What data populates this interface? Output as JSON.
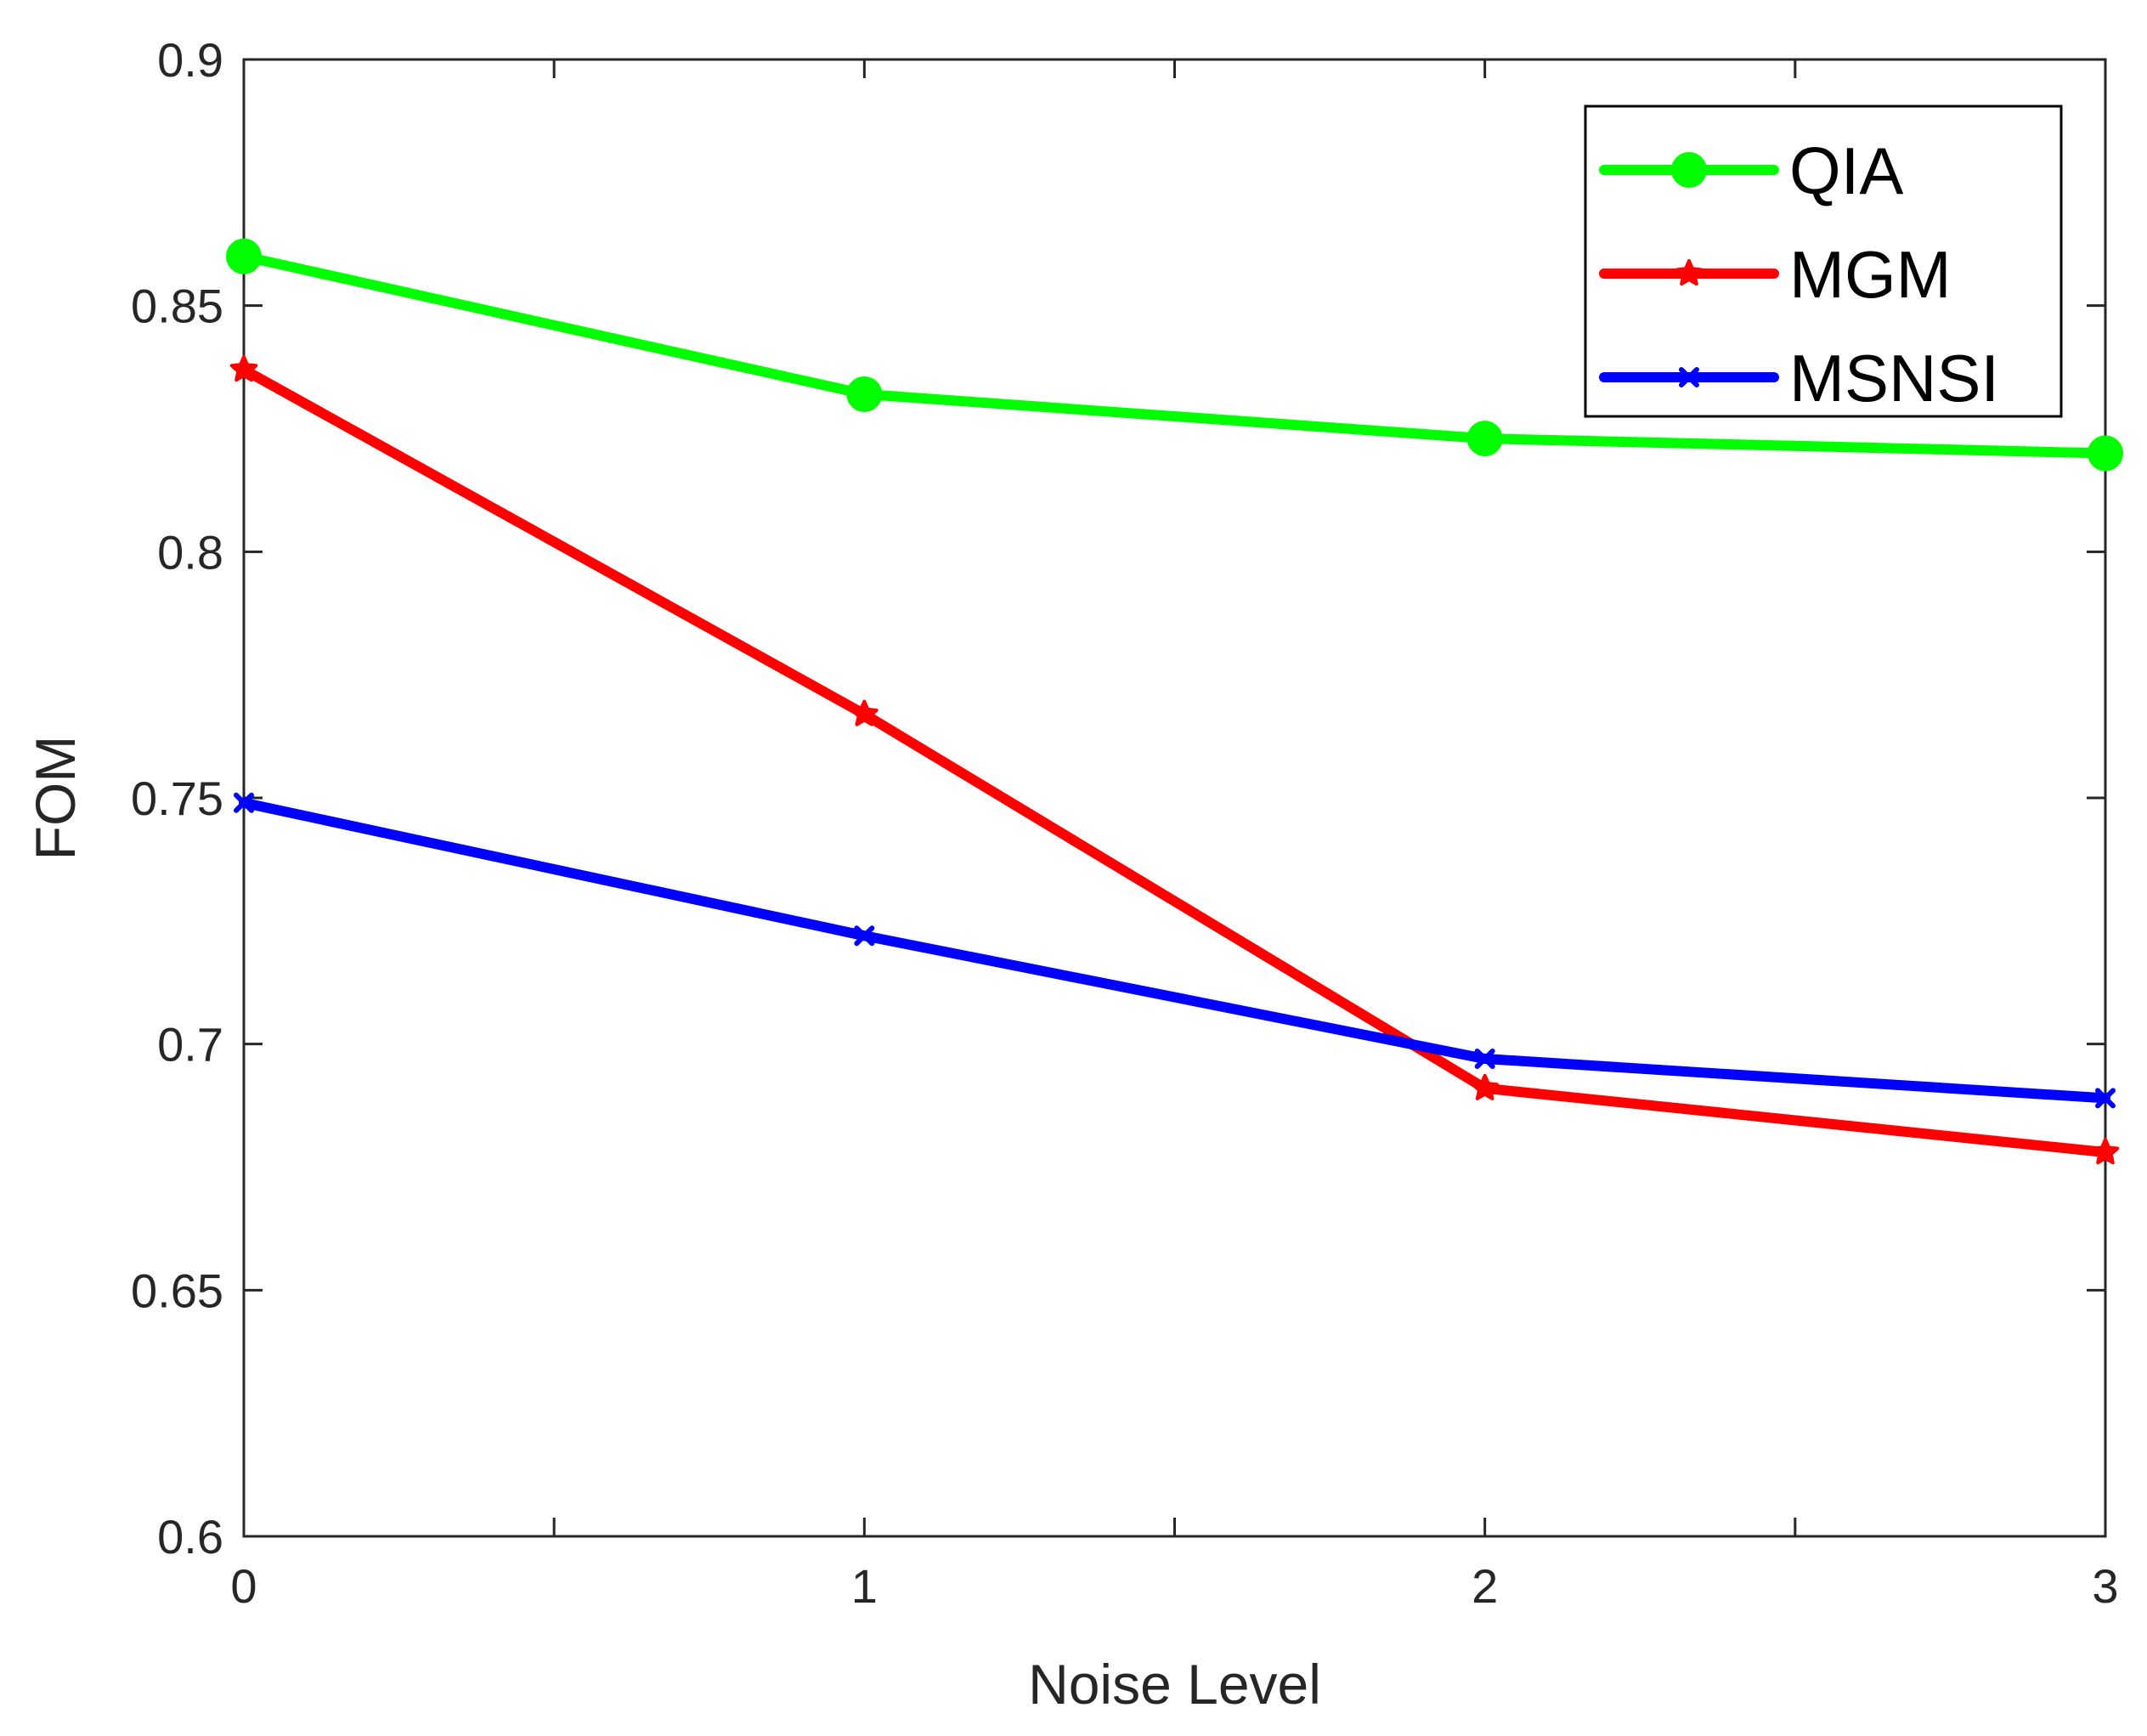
{
  "chart_data": {
    "type": "line",
    "title": "",
    "xlabel": "Noise Level",
    "ylabel": "FOM",
    "x": [
      0,
      1,
      2,
      3
    ],
    "xlim": [
      0,
      3
    ],
    "ylim": [
      0.6,
      0.9
    ],
    "xticks": [
      0,
      1,
      2,
      3
    ],
    "xtick_labels": [
      "0",
      "1",
      "2",
      "3"
    ],
    "xminor_ticks": [
      0.5,
      1.5,
      2.5
    ],
    "yticks": [
      0.6,
      0.65,
      0.7,
      0.75,
      0.8,
      0.85,
      0.9
    ],
    "ytick_labels": [
      "0.6",
      "0.65",
      "0.7",
      "0.75",
      "0.8",
      "0.85",
      "0.9"
    ],
    "grid": false,
    "legend_position": "top-right",
    "series": [
      {
        "name": "QIA",
        "color": "#00ff00",
        "marker": "circle",
        "values": [
          0.86,
          0.832,
          0.823,
          0.82
        ]
      },
      {
        "name": "MGM",
        "color": "#ff0000",
        "marker": "star",
        "values": [
          0.837,
          0.767,
          0.691,
          0.678
        ]
      },
      {
        "name": "MSNSI",
        "color": "#0000ff",
        "marker": "x",
        "values": [
          0.749,
          0.722,
          0.697,
          0.689
        ]
      }
    ]
  }
}
